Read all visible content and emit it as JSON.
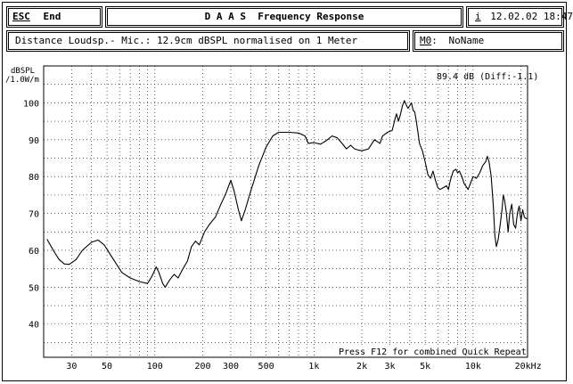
{
  "header": {
    "esc_key": "ESC",
    "esc_label": "End",
    "title": "D A A S  Frequency Response",
    "info_key": "i",
    "datetime": "12.02.02 18:47"
  },
  "subheader": {
    "description": "Distance Loudsp.- Mic.: 12.9cm dBSPL normalised on 1 Meter",
    "memory_key": "M0",
    "memory_name": "NoName"
  },
  "chart_data": {
    "type": "line",
    "ylabel": "dBSPL\n/1.0W/m",
    "y_ticks": [
      "100",
      "90",
      "80",
      "70",
      "60",
      "50",
      "40"
    ],
    "ylim": [
      31,
      110
    ],
    "x_scale": "log",
    "xlim": [
      20,
      22000
    ],
    "x_ticks": [
      {
        "f": 30,
        "label": "30"
      },
      {
        "f": 50,
        "label": "50"
      },
      {
        "f": 100,
        "label": "100"
      },
      {
        "f": 200,
        "label": "200"
      },
      {
        "f": 300,
        "label": "300"
      },
      {
        "f": 500,
        "label": "500"
      },
      {
        "f": 1000,
        "label": "1k"
      },
      {
        "f": 2000,
        "label": "2k"
      },
      {
        "f": 3000,
        "label": "3k"
      },
      {
        "f": 5000,
        "label": "5k"
      },
      {
        "f": 10000,
        "label": "10k"
      },
      {
        "f": 20000,
        "label": "20kHz"
      }
    ],
    "grid": true,
    "readout": "89.4 dB (Diff:-1.1)",
    "footer_note": "Press F12 for combined Quick Repeat",
    "series": [
      {
        "color": "#000000",
        "points": [
          [
            21,
            63
          ],
          [
            23,
            60
          ],
          [
            25,
            57.5
          ],
          [
            27,
            56.3
          ],
          [
            29,
            56.2
          ],
          [
            32,
            57.5
          ],
          [
            35,
            60
          ],
          [
            40,
            62.2
          ],
          [
            44,
            62.8
          ],
          [
            48,
            61.5
          ],
          [
            54,
            58
          ],
          [
            62,
            54
          ],
          [
            70,
            52.5
          ],
          [
            80,
            51.5
          ],
          [
            90,
            51
          ],
          [
            96,
            53
          ],
          [
            102,
            55.5
          ],
          [
            106,
            54
          ],
          [
            112,
            51
          ],
          [
            116,
            50
          ],
          [
            124,
            52
          ],
          [
            132,
            53.5
          ],
          [
            140,
            52.5
          ],
          [
            150,
            55
          ],
          [
            160,
            57
          ],
          [
            170,
            61
          ],
          [
            180,
            62.5
          ],
          [
            190,
            61.5
          ],
          [
            205,
            65
          ],
          [
            220,
            67
          ],
          [
            240,
            69
          ],
          [
            260,
            72.5
          ],
          [
            280,
            75.5
          ],
          [
            300,
            79
          ],
          [
            315,
            76
          ],
          [
            335,
            71
          ],
          [
            350,
            68
          ],
          [
            370,
            71
          ],
          [
            400,
            76
          ],
          [
            450,
            83
          ],
          [
            500,
            88
          ],
          [
            550,
            91
          ],
          [
            600,
            92
          ],
          [
            700,
            92
          ],
          [
            800,
            91.8
          ],
          [
            880,
            91
          ],
          [
            920,
            89
          ],
          [
            1000,
            89.2
          ],
          [
            1100,
            88.8
          ],
          [
            1200,
            89.8
          ],
          [
            1300,
            91
          ],
          [
            1400,
            90.5
          ],
          [
            1500,
            89
          ],
          [
            1600,
            87.5
          ],
          [
            1700,
            88.5
          ],
          [
            1800,
            87.5
          ],
          [
            1900,
            87.2
          ],
          [
            2000,
            87
          ],
          [
            2200,
            87.5
          ],
          [
            2400,
            90
          ],
          [
            2600,
            89
          ],
          [
            2700,
            91
          ],
          [
            2900,
            92
          ],
          [
            3100,
            92.5
          ],
          [
            3250,
            96
          ],
          [
            3300,
            97
          ],
          [
            3400,
            95
          ],
          [
            3500,
            97
          ],
          [
            3600,
            99.2
          ],
          [
            3700,
            100.6
          ],
          [
            3800,
            99.5
          ],
          [
            3900,
            98.5
          ],
          [
            4000,
            99.2
          ],
          [
            4100,
            100
          ],
          [
            4200,
            98
          ],
          [
            4300,
            97.5
          ],
          [
            4400,
            95
          ],
          [
            4500,
            92
          ],
          [
            4600,
            89
          ],
          [
            4800,
            87
          ],
          [
            5000,
            84
          ],
          [
            5200,
            80.5
          ],
          [
            5400,
            79.5
          ],
          [
            5600,
            81.5
          ],
          [
            5800,
            79
          ],
          [
            6000,
            77
          ],
          [
            6200,
            76.5
          ],
          [
            6500,
            77
          ],
          [
            6800,
            77.5
          ],
          [
            7000,
            76.5
          ],
          [
            7200,
            79
          ],
          [
            7500,
            81.5
          ],
          [
            7800,
            82
          ],
          [
            8000,
            81
          ],
          [
            8200,
            81.5
          ],
          [
            8500,
            80
          ],
          [
            8800,
            78
          ],
          [
            9000,
            77.5
          ],
          [
            9300,
            76.5
          ],
          [
            9600,
            78
          ],
          [
            10000,
            80
          ],
          [
            10500,
            79.5
          ],
          [
            11000,
            81
          ],
          [
            11500,
            83
          ],
          [
            12000,
            84
          ],
          [
            12300,
            85.5
          ],
          [
            12600,
            84
          ],
          [
            13000,
            80
          ],
          [
            13400,
            72
          ],
          [
            13700,
            64
          ],
          [
            14000,
            61
          ],
          [
            14400,
            63
          ],
          [
            14800,
            67
          ],
          [
            15200,
            71
          ],
          [
            15500,
            75
          ],
          [
            15800,
            73.5
          ],
          [
            16200,
            70
          ],
          [
            16600,
            65
          ],
          [
            17000,
            70
          ],
          [
            17500,
            72.5
          ],
          [
            18000,
            67
          ],
          [
            18500,
            66
          ],
          [
            19000,
            70
          ],
          [
            19500,
            72
          ],
          [
            20000,
            68
          ],
          [
            20500,
            71
          ],
          [
            21000,
            69
          ],
          [
            21800,
            68.5
          ]
        ]
      }
    ]
  }
}
